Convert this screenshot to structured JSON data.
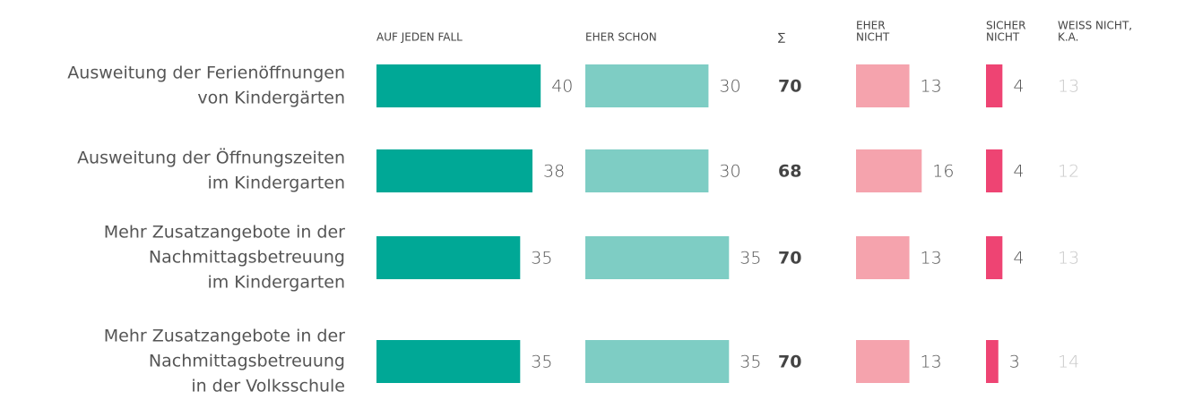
{
  "chart_data": {
    "type": "bar",
    "categories": [
      [
        "Ausweitung der Ferienöffnungen",
        "von Kindergärten"
      ],
      [
        "Ausweitung der Öffnungszeiten",
        "im Kindergarten"
      ],
      [
        "Mehr Zusatzangebote in der",
        "Nachmittagsbetreuung",
        "im Kindergarten"
      ],
      [
        "Mehr Zusatzangebote in der",
        "Nachmittagsbetreuung",
        "in der Volksschule"
      ]
    ],
    "series": [
      {
        "name": [
          "AUF JEDEN FALL"
        ],
        "kind": "bar",
        "color": "#00a896",
        "values": [
          40,
          38,
          35,
          35
        ]
      },
      {
        "name": [
          "EHER SCHON"
        ],
        "kind": "bar",
        "color": "#7ecdc4",
        "values": [
          30,
          30,
          35,
          35
        ]
      },
      {
        "name": [
          "∑"
        ],
        "kind": "label",
        "bold": true,
        "color": "#444444",
        "values": [
          70,
          68,
          70,
          70
        ]
      },
      {
        "name": [
          "EHER",
          "NICHT"
        ],
        "kind": "bar",
        "color": "#f5a3ad",
        "values": [
          13,
          16,
          13,
          13
        ]
      },
      {
        "name": [
          "SICHER",
          "NICHT"
        ],
        "kind": "bar",
        "color": "#ee4473",
        "values": [
          4,
          4,
          4,
          3
        ]
      },
      {
        "name": [
          "WEISS NICHT,",
          "K.A."
        ],
        "kind": "label",
        "color": "#c8c8c8",
        "values": [
          13,
          12,
          13,
          14
        ]
      }
    ]
  }
}
